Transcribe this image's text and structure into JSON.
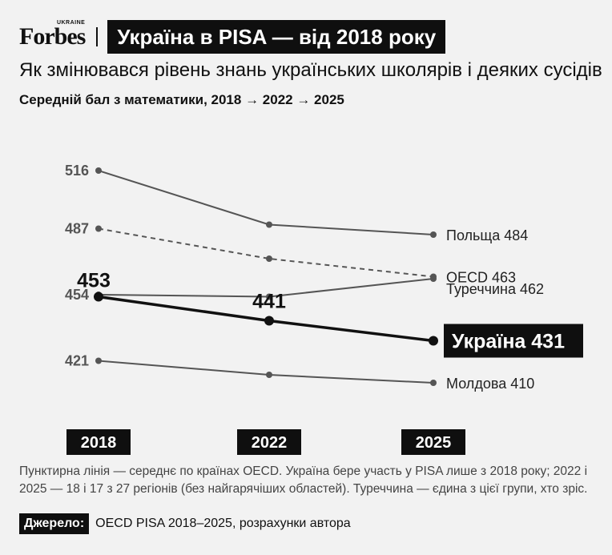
{
  "brand": {
    "logo": "Forbes",
    "logo_sub": "UKRAINE"
  },
  "header": {
    "title": "Україна в PISA — від 2018 року",
    "subtitle": "Як змінювався рівень знань українських школярів і деяких сусідів",
    "description": "Середній бал з математики, 2018 → 2022 → 2025"
  },
  "chart_data": {
    "type": "line",
    "x": [
      "2018",
      "2022",
      "2025"
    ],
    "ylim": [
      400,
      525
    ],
    "grid": false,
    "series": [
      {
        "name": "Польща",
        "values": [
          516,
          489,
          484
        ],
        "start_label": "516",
        "end_label": "Польща 484",
        "color": "#555555",
        "style": "solid"
      },
      {
        "name": "OECD",
        "values": [
          487,
          472,
          463
        ],
        "start_label": "487",
        "end_label": "OECD 463",
        "color": "#555555",
        "style": "dashed"
      },
      {
        "name": "Туреччина",
        "values": [
          454,
          453,
          462
        ],
        "start_label": "454",
        "end_label": "Туреччина 462",
        "color": "#555555",
        "style": "solid"
      },
      {
        "name": "Україна",
        "values": [
          453,
          441,
          431
        ],
        "start_label": "453",
        "mid_label": "441",
        "end_label": "Україна 431",
        "color": "#111111",
        "style": "bold"
      },
      {
        "name": "Молдова",
        "values": [
          421,
          414,
          410
        ],
        "start_label": "421",
        "end_label": "Молдова 410",
        "color": "#555555",
        "style": "solid"
      }
    ]
  },
  "footnote": "Пунктирна лінія — середнє по країнах OECD. Україна бере участь у PISA лише з 2018 року; 2022 і 2025 — 18 і 17 з 27 регіонів (без найгарячіших областей). Туреччина — єдина з цієї групи, хто зріс.",
  "source": {
    "label": "Джерело:",
    "text": "OECD PISA 2018–2025, розрахунки автора"
  }
}
